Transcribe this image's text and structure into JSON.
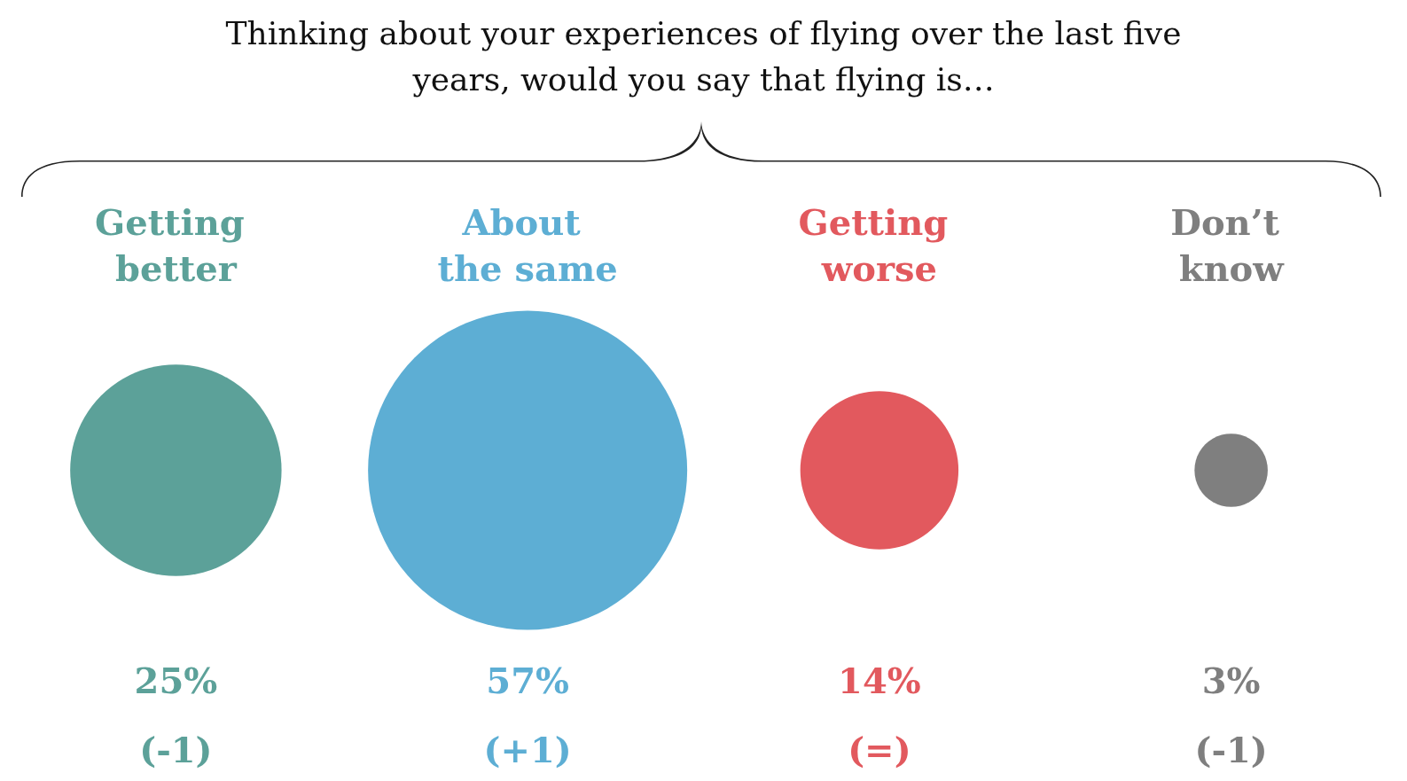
{
  "chart_data": {
    "type": "other",
    "title": "Thinking about your experiences of flying over the last five\nyears, would you say that flying is…",
    "categories": [
      "Getting better",
      "About the same",
      "Getting worse",
      "Don’t know"
    ],
    "values": [
      25,
      57,
      14,
      3
    ],
    "value_labels": [
      "25%",
      "57%",
      "14%",
      "3%"
    ],
    "colors": [
      "#5ca199",
      "#5daed4",
      "#e2595e",
      "#7f7f7f"
    ],
    "annotations": [
      {
        "text": "(-1)",
        "x": "Getting better"
      },
      {
        "text": "(+1)",
        "x": "About the same"
      },
      {
        "text": "(=)",
        "x": "Getting worse"
      },
      {
        "text": "(-1)",
        "x": "Don’t know"
      }
    ]
  }
}
